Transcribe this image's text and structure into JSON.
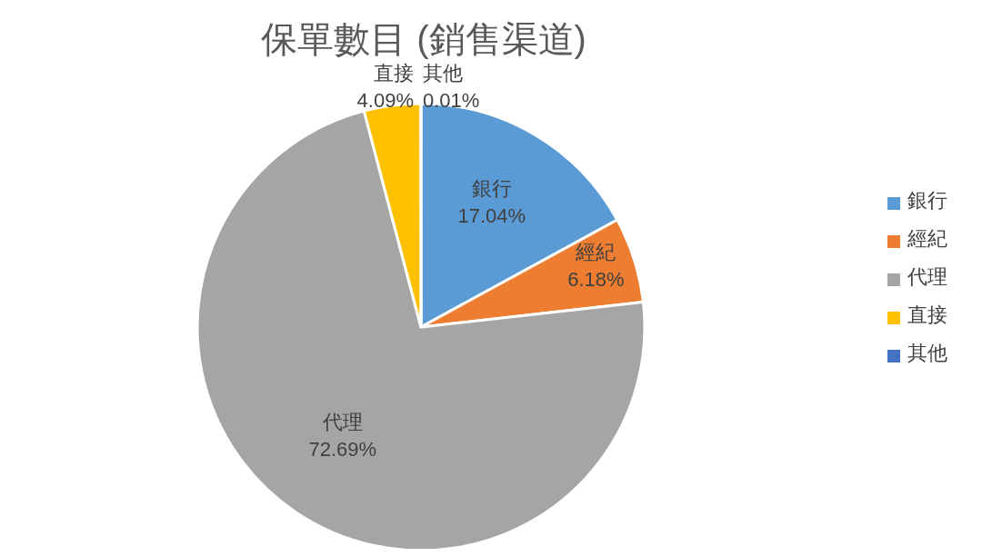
{
  "chart_data": {
    "type": "pie",
    "title": "保單數目 (銷售渠道)",
    "categories": [
      "銀行",
      "經紀",
      "代理",
      "直接",
      "其他"
    ],
    "values": [
      17.04,
      6.18,
      72.69,
      4.09,
      0.01
    ],
    "value_labels": [
      "17.04%",
      "6.18%",
      "72.69%",
      "4.09%",
      "0.01%"
    ],
    "colors": [
      "#5b9bd5",
      "#ed7d31",
      "#a5a5a5",
      "#ffc000",
      "#4472c4"
    ],
    "legend": "right"
  }
}
